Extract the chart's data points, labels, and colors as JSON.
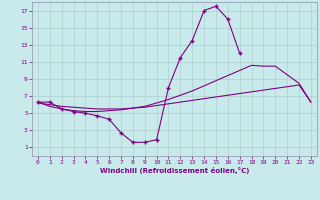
{
  "background_color": "#c8eaea",
  "grid_color": "#aacccc",
  "line_color": "#800080",
  "xlabel": "Windchill (Refroidissement éolien,°C)",
  "xlim": [
    -0.5,
    23.5
  ],
  "ylim": [
    0,
    18
  ],
  "xticks": [
    0,
    1,
    2,
    3,
    4,
    5,
    6,
    7,
    8,
    9,
    10,
    11,
    12,
    13,
    14,
    15,
    16,
    17,
    18,
    19,
    20,
    21,
    22,
    23
  ],
  "yticks": [
    1,
    3,
    5,
    7,
    9,
    11,
    13,
    15,
    17
  ],
  "series1_x": [
    0,
    1,
    2,
    3,
    4,
    5,
    6,
    7,
    8,
    9,
    10,
    11,
    12,
    13,
    14,
    15,
    16,
    17,
    18,
    19,
    20,
    21,
    22,
    23
  ],
  "series1_y": [
    6.3,
    6.3,
    5.5,
    5.2,
    5.0,
    4.7,
    4.3,
    2.7,
    1.6,
    1.6,
    1.9,
    8.0,
    11.5,
    13.5,
    17.0,
    17.5,
    16.0,
    12.0,
    null,
    null,
    null,
    null,
    null,
    null
  ],
  "series2_x": [
    0,
    1,
    2,
    3,
    4,
    5,
    6,
    7,
    8,
    9,
    10,
    11,
    12,
    13,
    14,
    15,
    16,
    17,
    18,
    19,
    20,
    21,
    22,
    23
  ],
  "series2_y": [
    6.2,
    6.0,
    5.8,
    5.7,
    5.6,
    5.5,
    5.5,
    5.5,
    5.6,
    5.7,
    5.9,
    6.1,
    6.3,
    6.5,
    6.7,
    6.9,
    7.1,
    7.3,
    7.5,
    7.7,
    7.9,
    8.1,
    8.3,
    6.3
  ],
  "series3_x": [
    0,
    1,
    2,
    3,
    4,
    5,
    6,
    7,
    8,
    9,
    10,
    11,
    12,
    13,
    14,
    15,
    16,
    17,
    18,
    19,
    20,
    21,
    22,
    23
  ],
  "series3_y": [
    6.3,
    5.8,
    5.5,
    5.3,
    5.2,
    5.2,
    5.3,
    5.4,
    5.6,
    5.8,
    6.2,
    6.6,
    7.1,
    7.6,
    8.2,
    8.8,
    9.4,
    10.0,
    10.6,
    10.5,
    10.5,
    9.5,
    8.5,
    6.3
  ]
}
